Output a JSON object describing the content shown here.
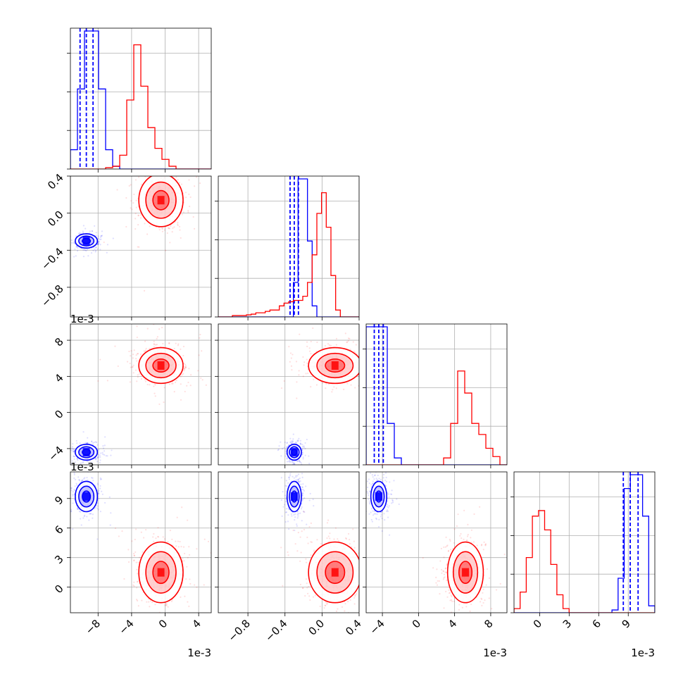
{
  "colors": {
    "blue": "#0000ff",
    "red": "#ff0000",
    "grid": "#b0b0b0",
    "axis": "#000000"
  },
  "chart_data": {
    "type": "scatter",
    "subtype": "corner-plot",
    "grid": true,
    "parameters": [
      {
        "range": [
          -0.0113,
          0.0055
        ],
        "ticks": [
          -8,
          -4,
          0,
          4
        ],
        "ticklabels": [
          "−8",
          "−4",
          "0",
          "4"
        ],
        "tick_scale": 0.001,
        "offset_label": "1e-3"
      },
      {
        "range": [
          -1.12,
          0.4
        ],
        "ticks": [
          -0.8,
          -0.4,
          0.0,
          0.4
        ],
        "ticklabels": [
          "−0.8",
          "−0.4",
          "0.0",
          "0.4"
        ],
        "tick_scale": 1,
        "offset_label": ""
      },
      {
        "range": [
          -0.0058,
          0.0098
        ],
        "ticks": [
          -4,
          0,
          4,
          8
        ],
        "ticklabels": [
          "−4",
          "0",
          "4",
          "8"
        ],
        "tick_scale": 0.001,
        "offset_label": "1e-3"
      },
      {
        "range": [
          -0.0026,
          0.0117
        ],
        "ticks": [
          0,
          3,
          6,
          9
        ],
        "ticklabels": [
          "0",
          "3",
          "6",
          "9"
        ],
        "tick_scale": 0.001,
        "offset_label": "1e-3"
      }
    ],
    "series": [
      {
        "color": "blue",
        "mean": [
          -0.0094,
          -0.3,
          -0.0044,
          0.0092
        ],
        "sd": [
          0.0006,
          0.035,
          0.0004,
          0.0007
        ],
        "quantiles": [
          [
            -0.01015,
            -0.0094,
            -0.0086
          ],
          [
            -0.345,
            -0.3,
            -0.255
          ],
          [
            -0.0049,
            -0.0044,
            -0.0039
          ],
          [
            0.0085,
            0.0092,
            0.01
          ]
        ],
        "hist": [
          [
            0.14,
            0.58,
            1.0,
            1.0,
            0.58,
            0.14,
            0.02,
            0,
            0,
            0,
            0,
            0,
            0,
            0,
            0,
            0,
            0,
            0,
            0,
            0
          ],
          [
            0,
            0,
            0,
            0,
            0,
            0,
            0,
            0,
            0,
            0,
            0,
            0,
            0,
            0,
            0,
            0,
            0.25,
            1.0,
            1.0,
            0.55,
            0.08,
            0,
            0,
            0,
            0,
            0,
            0,
            0,
            0,
            0
          ],
          [
            1.0,
            1.0,
            1.0,
            0.3,
            0.05,
            0,
            0,
            0,
            0,
            0,
            0,
            0,
            0,
            0,
            0,
            0,
            0,
            0,
            0,
            0
          ],
          [
            0,
            0,
            0,
            0,
            0,
            0,
            0,
            0,
            0,
            0,
            0,
            0,
            0,
            0,
            0,
            0,
            0.02,
            0.25,
            0.9,
            1.0,
            1.0,
            0.7,
            0.05
          ]
        ]
      },
      {
        "color": "red",
        "mean": [
          -0.0005,
          0.14,
          0.0052,
          0.0015
        ],
        "sd": [
          0.0012,
          0.13,
          0.0009,
          0.0014
        ],
        "hist": [
          [
            0,
            0,
            0,
            0,
            0,
            0.01,
            0.02,
            0.1,
            0.5,
            0.9,
            0.6,
            0.3,
            0.15,
            0.07,
            0.02,
            0,
            0,
            0,
            0,
            0
          ],
          [
            0,
            0,
            0,
            0.01,
            0.01,
            0.01,
            0.015,
            0.02,
            0.03,
            0.03,
            0.04,
            0.05,
            0.05,
            0.08,
            0.1,
            0.11,
            0.12,
            0.12,
            0.15,
            0.25,
            0.45,
            0.75,
            0.9,
            0.65,
            0.3,
            0.05,
            0,
            0,
            0,
            0
          ],
          [
            0,
            0,
            0,
            0,
            0,
            0,
            0,
            0,
            0,
            0,
            0,
            0.05,
            0.3,
            0.68,
            0.52,
            0.3,
            0.22,
            0.12,
            0.06,
            0
          ],
          [
            0.03,
            0.15,
            0.4,
            0.7,
            0.74,
            0.6,
            0.35,
            0.13,
            0.03,
            0,
            0,
            0,
            0,
            0,
            0,
            0,
            0,
            0,
            0,
            0,
            0,
            0,
            0
          ]
        ]
      }
    ]
  }
}
